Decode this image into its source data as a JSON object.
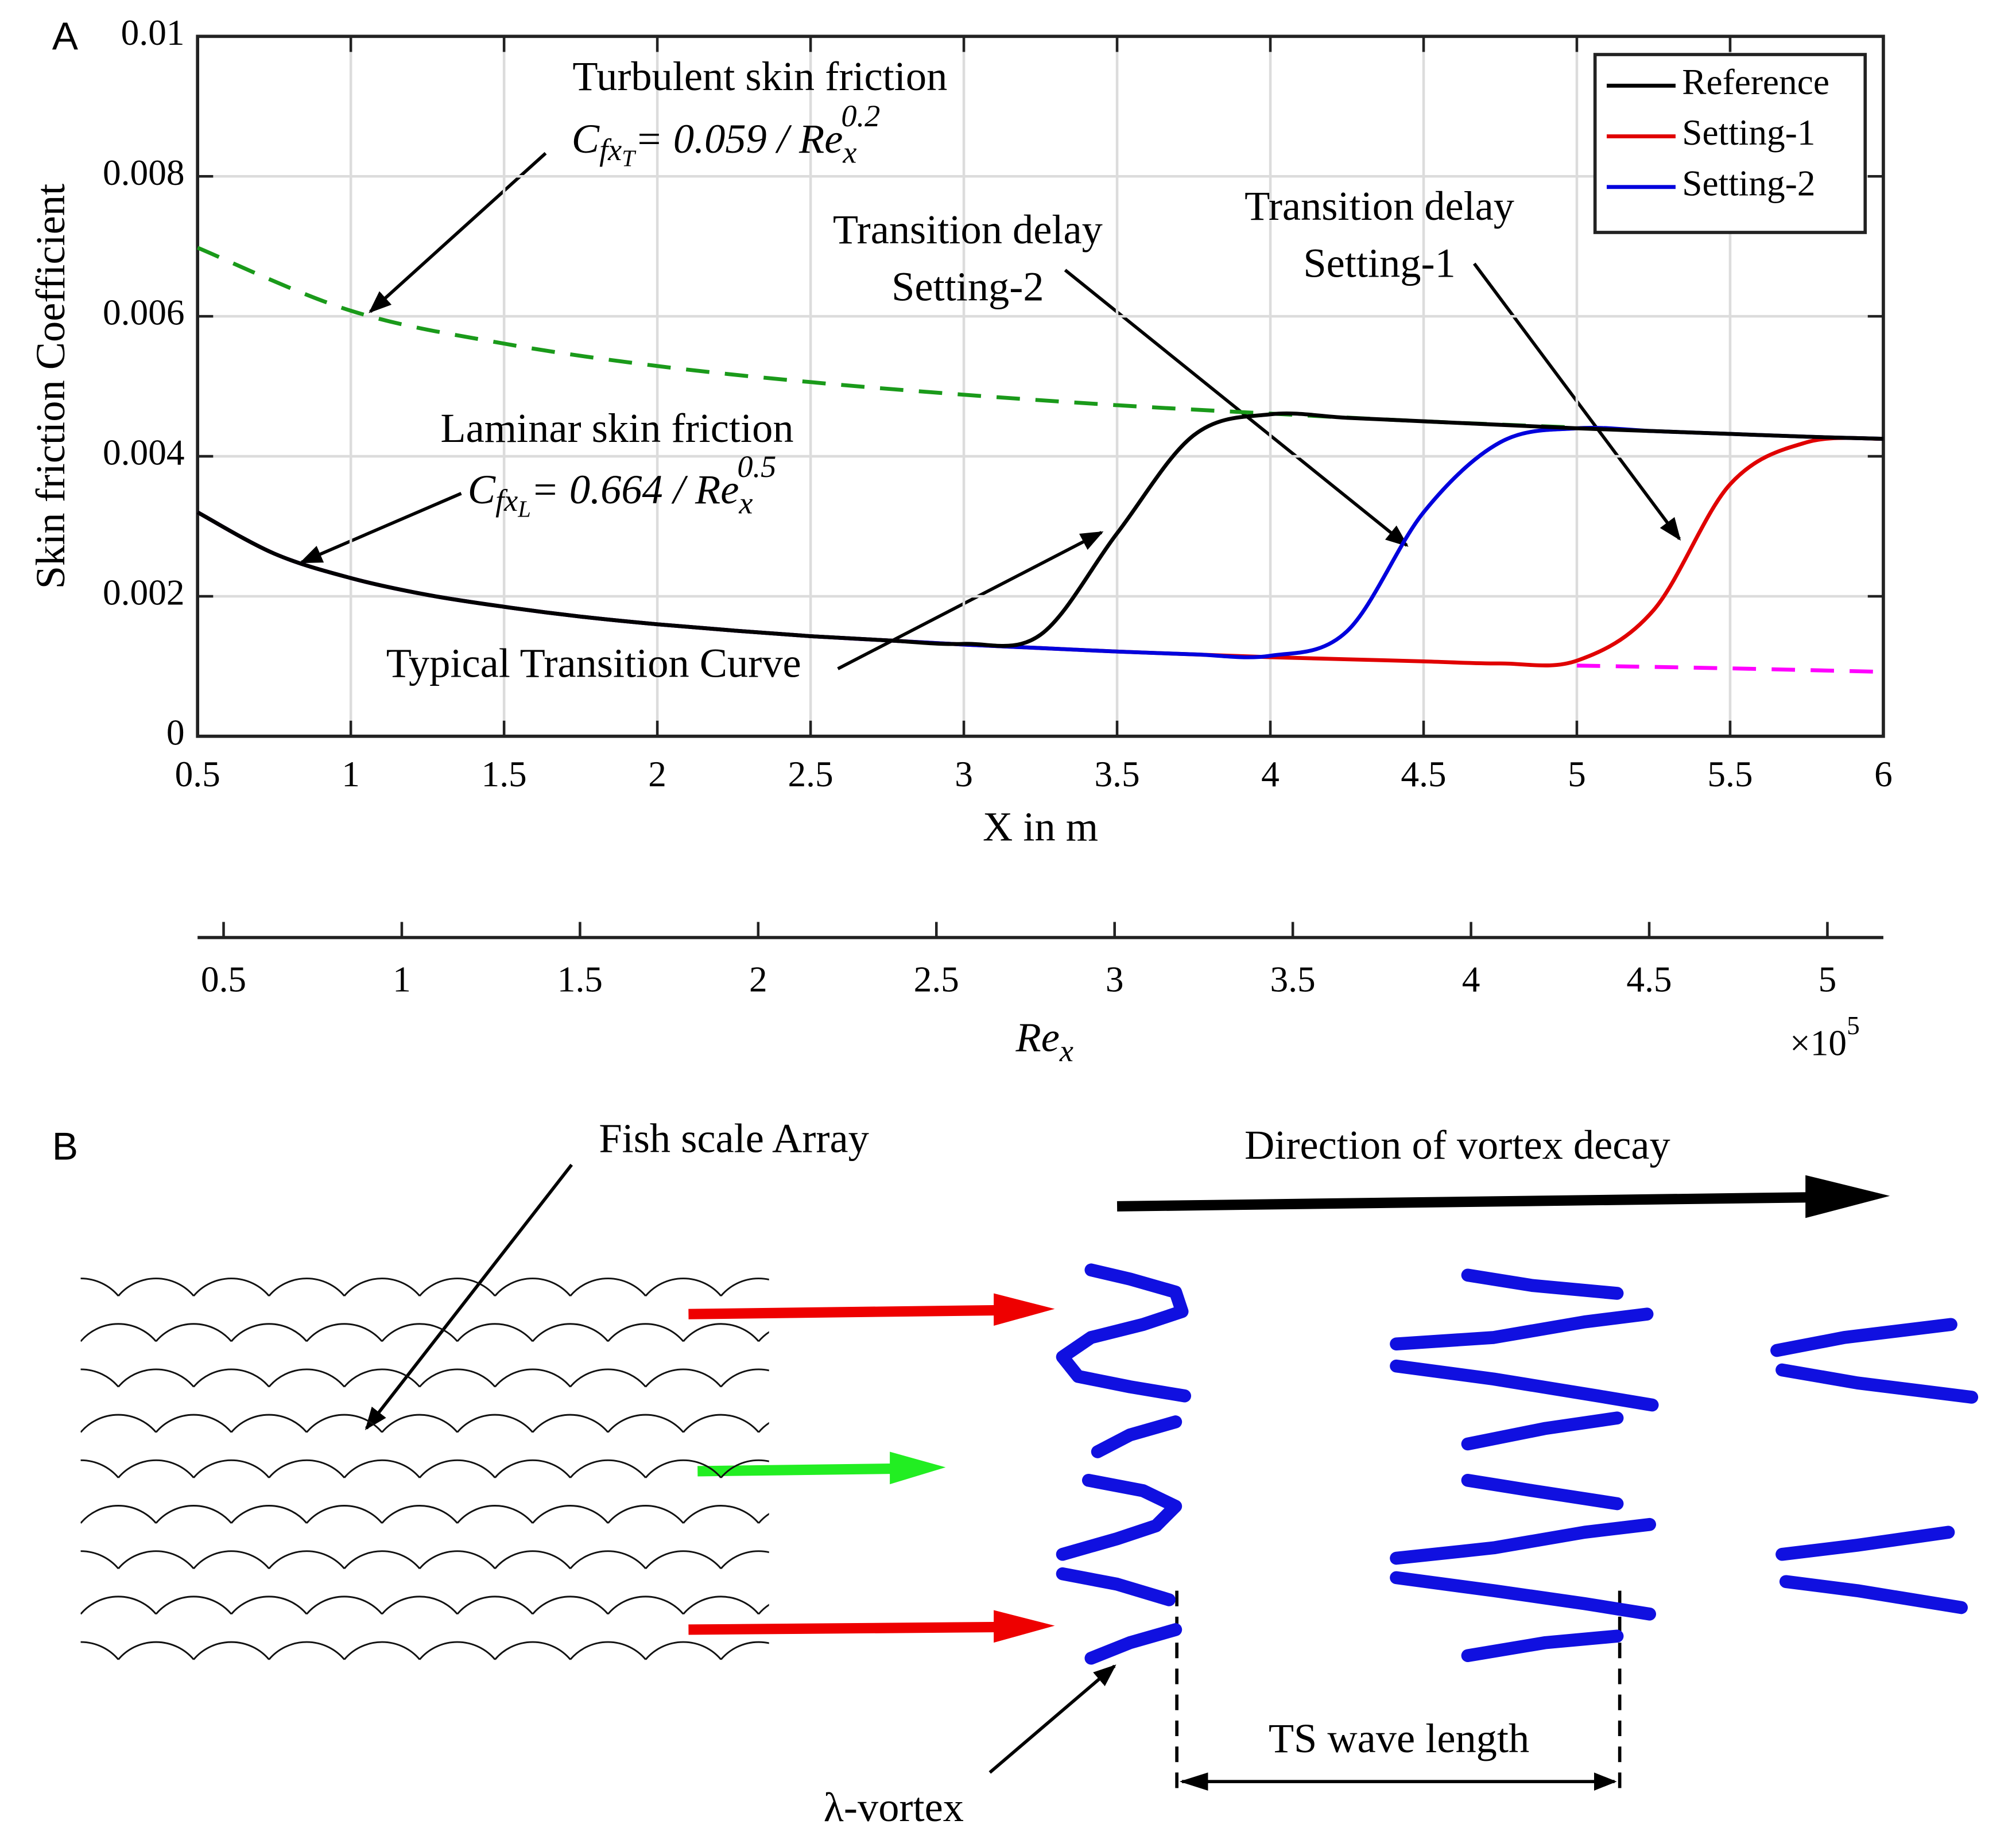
{
  "chart_data": {
    "type": "line",
    "panel": "A",
    "xlabel": "X in m",
    "ylabel": "Skin friction Coefficient",
    "xlim": [
      0.5,
      6
    ],
    "xticks": [
      0.5,
      1,
      1.5,
      2,
      2.5,
      3,
      3.5,
      4,
      4.5,
      5,
      5.5,
      6
    ],
    "ylim": [
      0,
      0.01
    ],
    "yticks": [
      0,
      0.002,
      0.004,
      0.006,
      0.008,
      0.01
    ],
    "grid": true,
    "legend": "upper right",
    "x": [
      0.5,
      0.75,
      1,
      1.25,
      1.5,
      1.75,
      2,
      2.25,
      2.5,
      2.75,
      3,
      3.25,
      3.5,
      3.75,
      4,
      4.25,
      4.5,
      4.75,
      5,
      5.25,
      5.5,
      5.75,
      6
    ],
    "series": [
      {
        "name": "Reference",
        "color": "#000000",
        "values": [
          0.0032,
          0.00261,
          0.00226,
          0.00202,
          0.00185,
          0.00171,
          0.0016,
          0.00151,
          0.00143,
          0.00137,
          0.00132,
          0.00145,
          0.0029,
          0.0043,
          0.0046,
          0.00455,
          0.0045,
          0.00445,
          0.0044,
          0.00436,
          0.00432,
          0.00428,
          0.00425
        ]
      },
      {
        "name": "Setting-1",
        "color": "#e00000",
        "values": [
          0.0032,
          0.00261,
          0.00226,
          0.00202,
          0.00185,
          0.00171,
          0.0016,
          0.00151,
          0.00143,
          0.00137,
          0.00131,
          0.00126,
          0.00121,
          0.00117,
          0.00113,
          0.0011,
          0.00107,
          0.00104,
          0.00108,
          0.0018,
          0.0036,
          0.0042,
          0.00425
        ]
      },
      {
        "name": "Setting-2",
        "color": "#0000dd",
        "values": [
          0.0032,
          0.00261,
          0.00226,
          0.00202,
          0.00185,
          0.00171,
          0.0016,
          0.00151,
          0.00143,
          0.00137,
          0.00131,
          0.00126,
          0.00121,
          0.00117,
          0.00115,
          0.0015,
          0.0032,
          0.0042,
          0.0044,
          0.00436,
          0.00432,
          0.00428,
          0.00425
        ]
      },
      {
        "color": "#1a9a1a",
        "style": "dashed",
        "x": [
          0.5,
          1,
          1.5,
          2,
          2.5,
          3,
          3.5,
          4,
          4.5,
          5
        ],
        "values": [
          0.00698,
          0.00608,
          0.00561,
          0.00529,
          0.00506,
          0.00488,
          0.00473,
          0.00461,
          0.0045,
          0.00441
        ]
      },
      {
        "color": "#ff00ff",
        "style": "dashed",
        "x": [
          5,
          5.5,
          6
        ],
        "values": [
          0.00101,
          0.00097,
          0.00092
        ]
      }
    ],
    "secondary_x": {
      "parts": [
        "Re",
        "x"
      ],
      "multiplier": [
        "×10",
        "5"
      ],
      "lim": [
        0.427,
        5.157
      ],
      "ticks": [
        0.5,
        1,
        1.5,
        2,
        2.5,
        3,
        3.5,
        4,
        4.5,
        5
      ]
    },
    "annotations": [
      {
        "text": "Turbulent skin friction",
        "formula": [
          "C",
          "fx",
          "T",
          "= 0.059 / Re",
          "x",
          "0.2"
        ]
      },
      {
        "text": "Laminar skin friction",
        "formula": [
          "C",
          "fx",
          "L",
          "= 0.664 / Re",
          "x",
          "0.5"
        ]
      },
      {
        "lines": [
          "Transition delay",
          "Setting-2"
        ]
      },
      {
        "lines": [
          "Transition delay",
          "Setting-1"
        ]
      },
      {
        "text": "Typical Transition Curve"
      }
    ]
  },
  "panel_b": {
    "panel": "B",
    "labels": [
      "Fish scale Array",
      "Direction of vortex decay",
      "λ-vortex",
      "TS wave length"
    ]
  }
}
